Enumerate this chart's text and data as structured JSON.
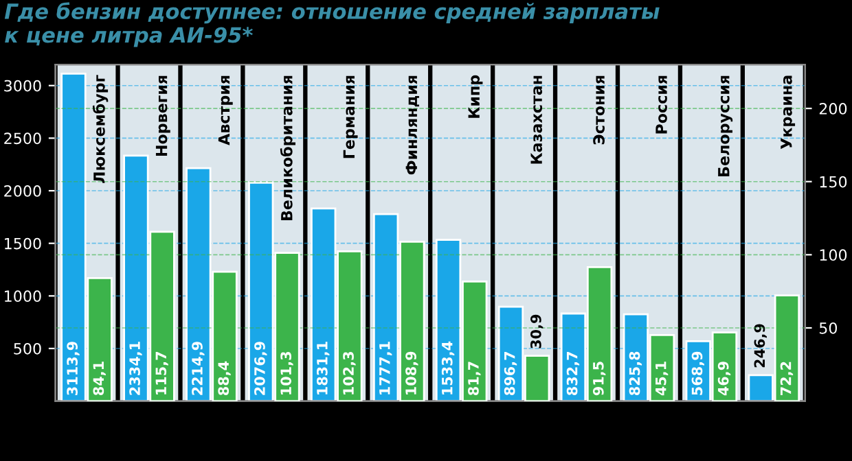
{
  "chart_data": {
    "type": "bar",
    "title": "Где бензин доступнее: отношение средней зарплаты\nк цене литра АИ-95*",
    "categories": [
      "Люксембург",
      "Норвегия",
      "Австрия",
      "Великобритания",
      "Германия",
      "Финляндия",
      "Кипр",
      "Казахстан",
      "Эстония",
      "Россия",
      "Белоруссия",
      "Украина"
    ],
    "series": [
      {
        "color": "#1aa7e8",
        "values": [
          3113.9,
          2334.1,
          2214.9,
          2076.9,
          1831.1,
          1777.1,
          1533.4,
          896.7,
          832.7,
          825.8,
          568.9,
          246.9
        ],
        "value_labels": [
          "3113,9",
          "2334,1",
          "2214,9",
          "2076,9",
          "1831,1",
          "1777,1",
          "1533,4",
          "896,7",
          "832,7",
          "825,8",
          "568,9",
          "246,9"
        ]
      },
      {
        "color": "#3cb44b",
        "axis": "y2",
        "values": [
          84.1,
          115.7,
          88.4,
          101.3,
          102.3,
          108.9,
          81.7,
          30.9,
          91.5,
          45.1,
          46.9,
          72.2
        ],
        "value_labels": [
          "84,1",
          "115,7",
          "88,4",
          "101,3",
          "102,3",
          "108,9",
          "81,7",
          "30,9",
          "91,5",
          "45,1",
          "46,9",
          "72,2"
        ]
      }
    ],
    "ylim": [
      0,
      3200
    ],
    "yticks": [
      500,
      1000,
      1500,
      2000,
      2500,
      3000
    ],
    "y2lim": [
      0,
      230
    ],
    "y2ticks": [
      50,
      100,
      150,
      200
    ],
    "grid": true,
    "tick_labels": "y"
  }
}
